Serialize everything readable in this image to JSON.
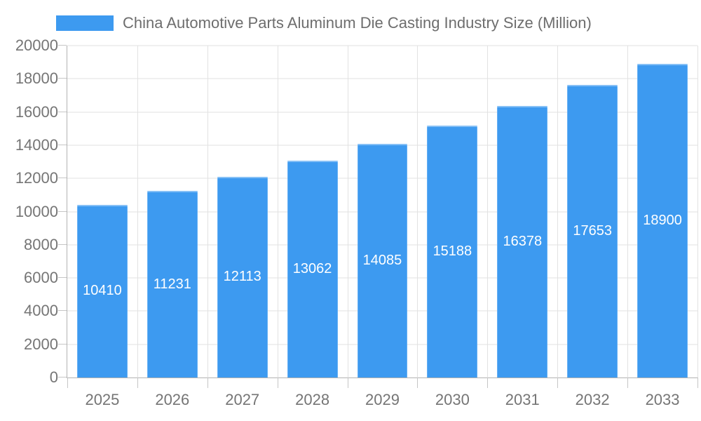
{
  "chart_data": {
    "type": "bar",
    "title": "China Automotive Parts Aluminum Die Casting Industry Size (Million)",
    "categories": [
      "2025",
      "2026",
      "2027",
      "2028",
      "2029",
      "2030",
      "2031",
      "2032",
      "2033"
    ],
    "values": [
      10410,
      11231,
      12113,
      13062,
      14085,
      15188,
      16378,
      17653,
      18900
    ],
    "xlabel": "",
    "ylabel": "",
    "ylim": [
      0,
      20000
    ],
    "ytick_step": 2000,
    "y_ticks": [
      0,
      2000,
      4000,
      6000,
      8000,
      10000,
      12000,
      14000,
      16000,
      18000,
      20000
    ],
    "y_tick_labels": [
      "0",
      "2000",
      "4000",
      "6000",
      "8000",
      "10000",
      "12000",
      "14000",
      "16000",
      "18000",
      "20000"
    ],
    "grid": true,
    "legend_position": "top-left",
    "value_label_position": "inside-center"
  },
  "colors": {
    "bar": "#3d9af0",
    "grid": "#e2e2e2",
    "axis": "#b2b2b2",
    "tick": "#c6c6c6",
    "label": "#757575",
    "legend": "#6d6d6d",
    "value": "#ffffff",
    "bg": "#ffffff"
  }
}
